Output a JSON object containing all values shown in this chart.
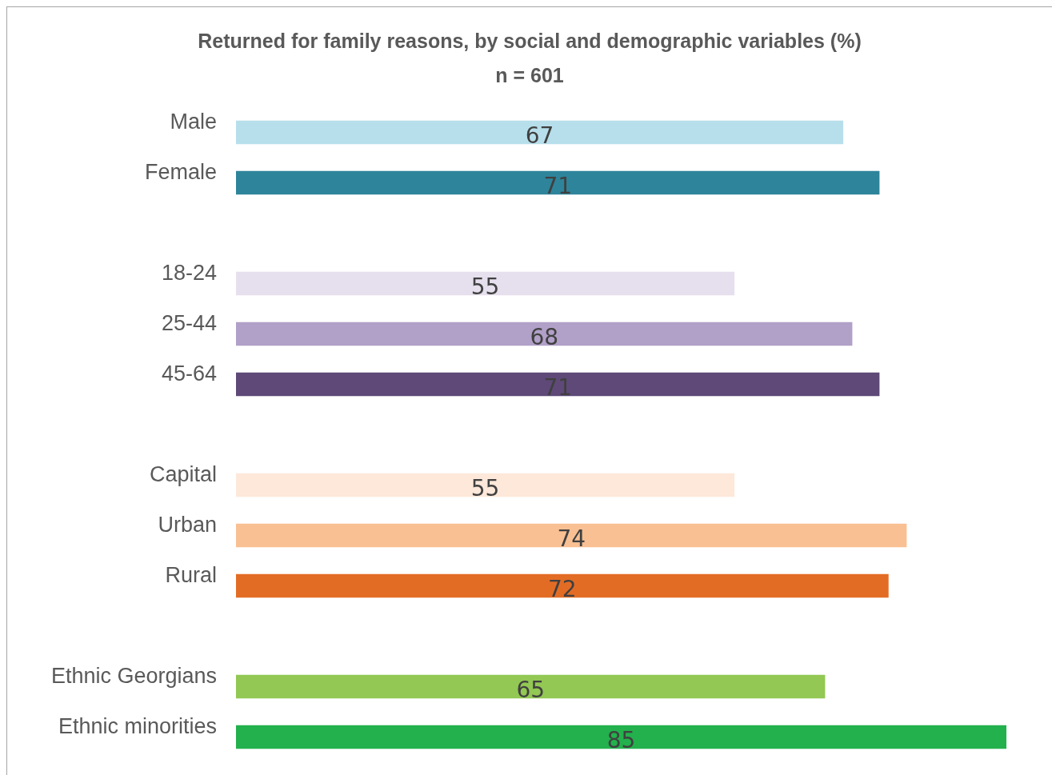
{
  "chart_data": {
    "type": "bar",
    "title": "Returned for family reasons, by social and demographic variables (%)",
    "subtitle": "n = 601",
    "orientation": "horizontal",
    "data_labels": true,
    "categories": [
      "Male",
      "Female",
      null,
      "18-24",
      "25-44",
      "45-64",
      null,
      "Capital",
      "Urban",
      "Rural",
      null,
      "Ethnic Georgians",
      "Ethnic minorities"
    ],
    "values": [
      67,
      71,
      null,
      55,
      68,
      71,
      null,
      55,
      74,
      72,
      null,
      65,
      85
    ],
    "colors": [
      "#b7dfeb",
      "#2e849a",
      null,
      "#e6dfed",
      "#b1a0c8",
      "#5e4978",
      null,
      "#fde8da",
      "#f9c093",
      "#e36c25",
      null,
      "#92c853",
      "#22b14c"
    ]
  }
}
